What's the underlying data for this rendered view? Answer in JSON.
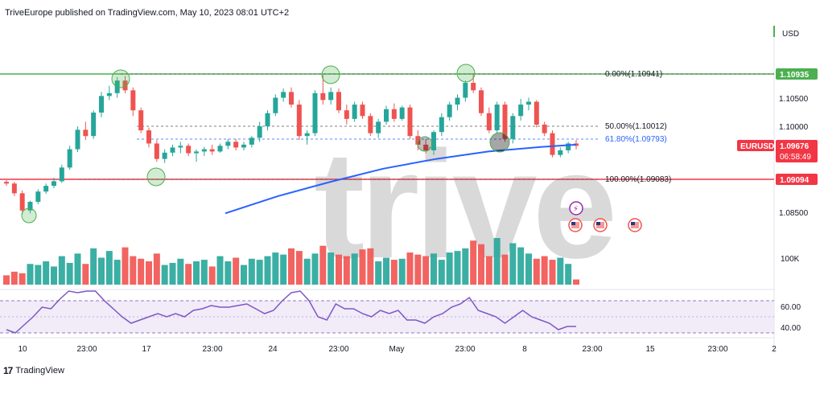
{
  "header": {
    "publisher_line": "TriveEurope published on TradingView.com, May 10, 2023 08:01 UTC+2"
  },
  "footer": {
    "logo_text": "17",
    "brand": "TradingView"
  },
  "watermark": "trive",
  "price_axis": {
    "currency": "USD",
    "ticks": [
      "1.10500",
      "1.10000",
      "1.08500"
    ],
    "volume_label": "100K",
    "rsi_ticks": [
      "60.00",
      "40.00"
    ]
  },
  "tags": {
    "resistance": "1.10935",
    "symbol": "EURUSD",
    "last_price": "1.09676",
    "countdown": "06:58:49",
    "support": "1.09094"
  },
  "fib_labels": {
    "level_0": "0.00%(1.10941)",
    "level_50": "50.00%(1.10012)",
    "level_618": "61.80%(1.09793)",
    "level_100": "100.00%(1.09083)"
  },
  "time_axis": [
    "10",
    "23:00",
    "17",
    "23:00",
    "24",
    "23:00",
    "May",
    "23:00",
    "8",
    "23:00",
    "15",
    "23:00",
    "2"
  ],
  "colors": {
    "bull": "#26a69a",
    "bear": "#ef5350",
    "ma": "#2962ff",
    "resistance": "#4caf50",
    "support": "#f23645",
    "rsi": "#7e57c2"
  },
  "chart_data": {
    "type": "candlestick",
    "symbol": "EURUSD",
    "levels": {
      "resistance": 1.10935,
      "support": 1.09094,
      "fib_0": 1.10941,
      "fib_50": 1.10012,
      "fib_618": 1.09793,
      "fib_100": 1.09083
    },
    "candles": [
      [
        1.0905,
        1.0908,
        1.0898,
        1.0902
      ],
      [
        1.0902,
        1.0905,
        1.088,
        1.0885
      ],
      [
        1.0885,
        1.089,
        1.0848,
        1.0855
      ],
      [
        1.0855,
        1.0872,
        1.085,
        1.087
      ],
      [
        1.087,
        1.0892,
        1.0866,
        1.0888
      ],
      [
        1.0888,
        1.0902,
        1.0884,
        1.0898
      ],
      [
        1.0898,
        1.0912,
        1.0894,
        1.0906
      ],
      [
        1.0906,
        1.0935,
        1.0903,
        1.093
      ],
      [
        1.093,
        1.0968,
        1.0926,
        1.0962
      ],
      [
        1.0962,
        1.1002,
        1.0957,
        1.0996
      ],
      [
        1.0996,
        1.101,
        1.0978,
        1.0985
      ],
      [
        1.0985,
        1.103,
        1.098,
        1.1026
      ],
      [
        1.1026,
        1.1062,
        1.1018,
        1.1055
      ],
      [
        1.1055,
        1.1073,
        1.1048,
        1.106
      ],
      [
        1.106,
        1.1088,
        1.1052,
        1.1082
      ],
      [
        1.1082,
        1.109,
        1.106,
        1.1065
      ],
      [
        1.1065,
        1.107,
        1.102,
        1.103
      ],
      [
        1.103,
        1.1035,
        1.099,
        1.0995
      ],
      [
        1.0995,
        1.1,
        1.0965,
        1.0972
      ],
      [
        1.0972,
        1.0978,
        1.094,
        1.0945
      ],
      [
        1.0945,
        1.0962,
        1.0938,
        1.0956
      ],
      [
        1.0956,
        1.097,
        1.095,
        1.0965
      ],
      [
        1.0965,
        1.0975,
        1.0955,
        1.0968
      ],
      [
        1.0968,
        1.0972,
        1.095,
        1.0955
      ],
      [
        1.0955,
        1.0962,
        1.094,
        1.0958
      ],
      [
        1.0958,
        1.0966,
        1.095,
        1.0962
      ],
      [
        1.0962,
        1.097,
        1.0952,
        1.0958
      ],
      [
        1.0958,
        1.0972,
        1.0956,
        1.0968
      ],
      [
        1.0968,
        1.098,
        1.0962,
        1.0975
      ],
      [
        1.0975,
        1.098,
        1.096,
        1.0965
      ],
      [
        1.0965,
        1.0975,
        1.096,
        1.097
      ],
      [
        1.097,
        1.0985,
        1.0965,
        1.0982
      ],
      [
        1.0982,
        1.101,
        1.0975,
        1.1002
      ],
      [
        1.1002,
        1.103,
        1.0995,
        1.1025
      ],
      [
        1.1025,
        1.1058,
        1.102,
        1.1052
      ],
      [
        1.1052,
        1.1068,
        1.1045,
        1.1062
      ],
      [
        1.1062,
        1.107,
        1.1035,
        1.104
      ],
      [
        1.104,
        1.1048,
        1.0978,
        1.0985
      ],
      [
        1.0985,
        1.0995,
        1.097,
        1.099
      ],
      [
        1.099,
        1.1065,
        1.0985,
        1.106
      ],
      [
        1.106,
        1.1092,
        1.104,
        1.1048
      ],
      [
        1.1048,
        1.107,
        1.104,
        1.1062
      ],
      [
        1.1062,
        1.1068,
        1.1025,
        1.103
      ],
      [
        1.103,
        1.104,
        1.1005,
        1.1015
      ],
      [
        1.1015,
        1.1045,
        1.101,
        1.104
      ],
      [
        1.104,
        1.1045,
        1.1015,
        1.102
      ],
      [
        1.102,
        1.1025,
        1.0985,
        1.099
      ],
      [
        1.099,
        1.1015,
        1.0982,
        1.101
      ],
      [
        1.101,
        1.1038,
        1.1005,
        1.1032
      ],
      [
        1.1032,
        1.1042,
        1.101,
        1.1015
      ],
      [
        1.1015,
        1.1038,
        1.1012,
        1.1035
      ],
      [
        1.1035,
        1.104,
        1.098,
        1.0985
      ],
      [
        1.0985,
        1.0995,
        1.096,
        1.097
      ],
      [
        1.097,
        1.098,
        1.0955,
        1.096
      ],
      [
        1.096,
        1.0995,
        1.0952,
        1.0992
      ],
      [
        1.0992,
        1.1025,
        1.0985,
        1.1018
      ],
      [
        1.1018,
        1.1045,
        1.1012,
        1.104
      ],
      [
        1.104,
        1.1058,
        1.103,
        1.1052
      ],
      [
        1.1052,
        1.1082,
        1.1045,
        1.1078
      ],
      [
        1.1078,
        1.1095,
        1.106,
        1.1065
      ],
      [
        1.1065,
        1.107,
        1.102,
        1.1025
      ],
      [
        1.1025,
        1.1035,
        1.099,
        1.0995
      ],
      [
        1.0995,
        1.1045,
        1.099,
        1.104
      ],
      [
        1.104,
        1.1045,
        1.0975,
        1.098
      ],
      [
        1.098,
        1.1025,
        1.0972,
        1.102
      ],
      [
        1.102,
        1.105,
        1.1012,
        1.104
      ],
      [
        1.104,
        1.1052,
        1.103,
        1.1045
      ],
      [
        1.1045,
        1.1048,
        1.1,
        1.1005
      ],
      [
        1.1005,
        1.101,
        1.0985,
        1.099
      ],
      [
        1.099,
        1.0995,
        1.0948,
        1.0952
      ],
      [
        1.0952,
        1.0965,
        1.0948,
        1.096
      ],
      [
        1.096,
        1.0975,
        1.0955,
        1.0972
      ],
      [
        1.0972,
        1.0978,
        1.0962,
        1.0968
      ]
    ],
    "volume": [
      18,
      25,
      22,
      40,
      38,
      45,
      35,
      55,
      42,
      60,
      40,
      70,
      52,
      65,
      48,
      72,
      55,
      50,
      45,
      60,
      38,
      42,
      50,
      40,
      45,
      48,
      35,
      55,
      45,
      52,
      38,
      50,
      48,
      55,
      62,
      58,
      70,
      65,
      50,
      60,
      75,
      62,
      58,
      55,
      60,
      68,
      70,
      45,
      52,
      48,
      50,
      62,
      58,
      55,
      60,
      48,
      62,
      65,
      70,
      85,
      78,
      55,
      90,
      58,
      80,
      72,
      60,
      50,
      55,
      48,
      52,
      40,
      10
    ],
    "moving_average": [
      [
        0.0,
        1.085
      ],
      [
        0.15,
        1.088
      ],
      [
        0.3,
        1.0905
      ],
      [
        0.45,
        1.0928
      ],
      [
        0.6,
        1.0945
      ],
      [
        0.75,
        1.0958
      ],
      [
        0.9,
        1.0966
      ],
      [
        1.0,
        1.097
      ]
    ],
    "rsi": [
      42,
      40,
      45,
      50,
      56,
      55,
      61,
      66,
      65,
      70,
      68,
      60,
      55,
      50,
      46,
      48,
      50,
      52,
      50,
      52,
      50,
      54,
      55,
      57,
      56,
      56,
      57,
      58,
      55,
      52,
      54,
      60,
      65,
      66,
      60,
      50,
      48,
      58,
      55,
      55,
      52,
      50,
      54,
      52,
      54,
      48,
      48,
      46,
      50,
      52,
      56,
      58,
      62,
      54,
      52,
      50,
      46,
      50,
      54,
      50,
      48,
      46,
      42,
      44,
      44
    ],
    "rsi_range": [
      30,
      70
    ]
  }
}
